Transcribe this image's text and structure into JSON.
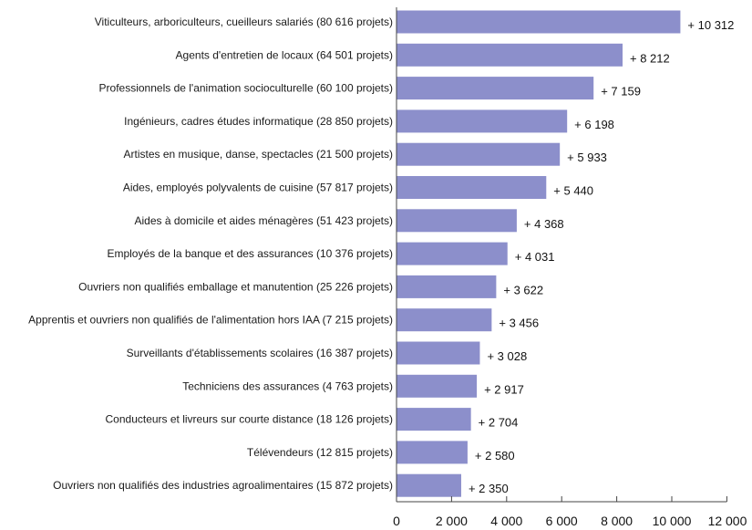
{
  "chart_data": {
    "type": "bar",
    "orientation": "horizontal",
    "title": "",
    "xlabel": "",
    "ylabel": "",
    "xlim": [
      0,
      12000
    ],
    "grid": false,
    "bar_color": "#8c8fcb",
    "categories": [
      "Viticulteurs, arboriculteurs, cueilleurs salariés (80 616 projets)",
      "Agents d'entretien de locaux (64 501 projets)",
      "Professionnels de l'animation socioculturelle (60 100 projets)",
      "Ingénieurs, cadres études informatique (28 850 projets)",
      "Artistes en musique, danse, spectacles (21 500 projets)",
      "Aides, employés polyvalents de cuisine (57 817 projets)",
      "Aides à domicile et aides ménagères (51 423 projets)",
      "Employés de la banque et des assurances (10 376 projets)",
      "Ouvriers non qualifiés emballage et manutention (25 226 projets)",
      "Apprentis et ouvriers non qualifiés de l'alimentation hors IAA (7 215 projets)",
      "Surveillants d'établissements scolaires (16 387 projets)",
      "Techniciens des assurances (4 763 projets)",
      "Conducteurs et livreurs sur courte distance (18 126 projets)",
      "Télévendeurs (12 815 projets)",
      "Ouvriers non qualifiés des industries agroalimentaires (15 872 projets)"
    ],
    "values": [
      10312,
      8212,
      7159,
      6198,
      5933,
      5440,
      4368,
      4031,
      3622,
      3456,
      3028,
      2917,
      2704,
      2580,
      2350
    ],
    "value_labels": [
      "+ 10 312",
      "+ 8 212",
      "+ 7 159",
      "+ 6 198",
      "+ 5 933",
      "+ 5 440",
      "+ 4 368",
      "+ 4 031",
      "+ 3 622",
      "+ 3 456",
      "+ 3 028",
      "+ 2 917",
      "+ 2 704",
      "+ 2 580",
      "+ 2 350"
    ],
    "x_ticks": [
      0,
      2000,
      4000,
      6000,
      8000,
      10000,
      12000
    ],
    "x_tick_labels": [
      "0",
      "2 000",
      "4 000",
      "6 000",
      "8 000",
      "10 000",
      "12 000"
    ]
  }
}
